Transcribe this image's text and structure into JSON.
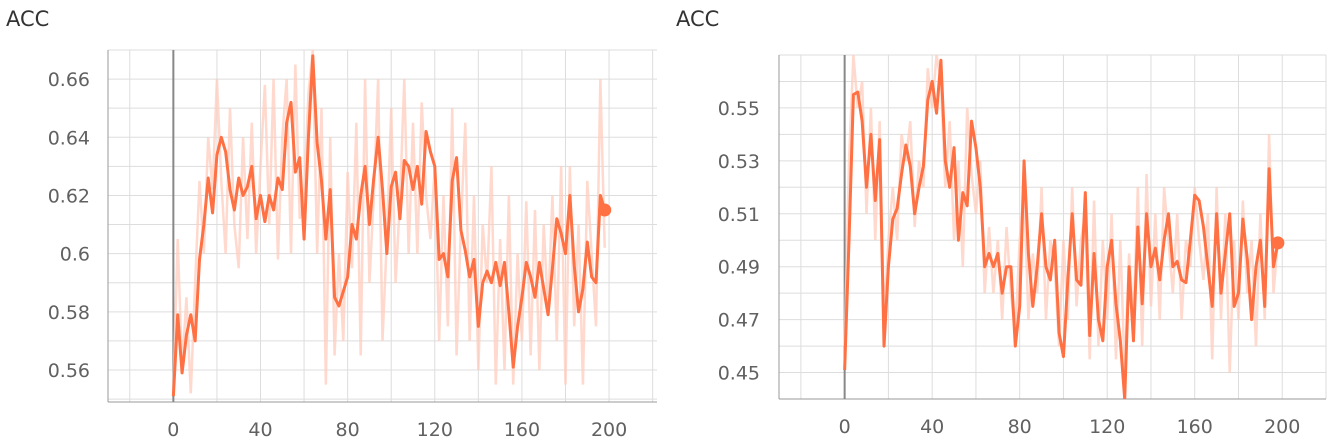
{
  "chart_data": [
    {
      "type": "line",
      "title": "ACC",
      "xlabel": "",
      "ylabel": "",
      "xlim": [
        -30,
        222
      ],
      "ylim": [
        0.549,
        0.67
      ],
      "xticks": [
        "0",
        "40",
        "80",
        "120",
        "160",
        "200"
      ],
      "xtick_values": [
        0,
        40,
        80,
        120,
        160,
        200
      ],
      "yticks": [
        "0.56",
        "0.58",
        "0.6",
        "0.62",
        "0.64",
        "0.66"
      ],
      "ytick_values": [
        0.56,
        0.58,
        0.6,
        0.62,
        0.64,
        0.66
      ],
      "grid": true,
      "colors": {
        "smoothed": "#ff7043",
        "raw": "#ffccbc",
        "grid": "#dddddd",
        "axis": "#999999"
      },
      "series": [
        {
          "x": [
            0,
            2,
            4,
            6,
            8,
            10,
            12,
            14,
            16,
            18,
            20,
            22,
            24,
            26,
            28,
            30,
            32,
            34,
            36,
            38,
            40,
            42,
            44,
            46,
            48,
            50,
            52,
            54,
            56,
            58,
            60,
            62,
            64,
            66,
            68,
            70,
            72,
            74,
            76,
            78,
            80,
            82,
            84,
            86,
            88,
            90,
            92,
            94,
            96,
            98,
            100,
            102,
            104,
            106,
            108,
            110,
            112,
            114,
            116,
            118,
            120,
            122,
            124,
            126,
            128,
            130,
            132,
            134,
            136,
            138,
            140,
            142,
            144,
            146,
            148,
            150,
            152,
            154,
            156,
            158,
            160,
            162,
            164,
            166,
            168,
            170,
            172,
            174,
            176,
            178,
            180,
            182,
            184,
            186,
            188,
            190,
            192,
            194,
            196,
            198
          ],
          "y": [
            0.551,
            0.579,
            0.559,
            0.572,
            0.579,
            0.57,
            0.598,
            0.61,
            0.626,
            0.614,
            0.634,
            0.64,
            0.635,
            0.622,
            0.615,
            0.626,
            0.62,
            0.623,
            0.63,
            0.612,
            0.62,
            0.611,
            0.62,
            0.615,
            0.626,
            0.622,
            0.645,
            0.652,
            0.628,
            0.633,
            0.605,
            0.64,
            0.668,
            0.638,
            0.625,
            0.605,
            0.622,
            0.585,
            0.582,
            0.587,
            0.592,
            0.61,
            0.605,
            0.62,
            0.63,
            0.61,
            0.626,
            0.64,
            0.622,
            0.6,
            0.623,
            0.628,
            0.612,
            0.632,
            0.63,
            0.622,
            0.63,
            0.617,
            0.642,
            0.635,
            0.63,
            0.598,
            0.6,
            0.592,
            0.625,
            0.633,
            0.608,
            0.601,
            0.592,
            0.598,
            0.575,
            0.59,
            0.594,
            0.59,
            0.597,
            0.589,
            0.597,
            0.58,
            0.561,
            0.575,
            0.585,
            0.597,
            0.592,
            0.585,
            0.597,
            0.588,
            0.579,
            0.595,
            0.612,
            0.607,
            0.6,
            0.62,
            0.596,
            0.58,
            0.588,
            0.604,
            0.592,
            0.59,
            0.62,
            0.615
          ]
        }
      ],
      "raw_series": {
        "x": [
          0,
          2,
          4,
          6,
          8,
          10,
          12,
          14,
          16,
          18,
          20,
          22,
          24,
          26,
          28,
          30,
          32,
          34,
          36,
          38,
          40,
          42,
          44,
          46,
          48,
          50,
          52,
          54,
          56,
          58,
          60,
          62,
          64,
          66,
          68,
          70,
          72,
          74,
          76,
          78,
          80,
          82,
          84,
          86,
          88,
          90,
          92,
          94,
          96,
          98,
          100,
          102,
          104,
          106,
          108,
          110,
          112,
          114,
          116,
          118,
          120,
          122,
          124,
          126,
          128,
          130,
          132,
          134,
          136,
          138,
          140,
          142,
          144,
          146,
          148,
          150,
          152,
          154,
          156,
          158,
          160,
          162,
          164,
          166,
          168,
          170,
          172,
          174,
          176,
          178,
          180,
          182,
          184,
          186,
          188,
          190,
          192,
          194,
          196,
          198
        ],
        "y": [
          0.553,
          0.605,
          0.56,
          0.585,
          0.552,
          0.59,
          0.625,
          0.6,
          0.64,
          0.622,
          0.66,
          0.625,
          0.6,
          0.65,
          0.61,
          0.595,
          0.64,
          0.605,
          0.645,
          0.6,
          0.63,
          0.658,
          0.61,
          0.66,
          0.598,
          0.64,
          0.66,
          0.6,
          0.665,
          0.612,
          0.62,
          0.655,
          0.67,
          0.6,
          0.65,
          0.555,
          0.64,
          0.565,
          0.6,
          0.57,
          0.628,
          0.595,
          0.645,
          0.565,
          0.66,
          0.59,
          0.62,
          0.66,
          0.57,
          0.605,
          0.65,
          0.59,
          0.618,
          0.66,
          0.6,
          0.645,
          0.6,
          0.652,
          0.62,
          0.605,
          0.63,
          0.57,
          0.62,
          0.575,
          0.65,
          0.565,
          0.61,
          0.645,
          0.57,
          0.62,
          0.56,
          0.61,
          0.59,
          0.63,
          0.555,
          0.605,
          0.56,
          0.62,
          0.555,
          0.6,
          0.57,
          0.618,
          0.565,
          0.615,
          0.56,
          0.61,
          0.58,
          0.62,
          0.57,
          0.63,
          0.555,
          0.63,
          0.575,
          0.61,
          0.555,
          0.625,
          0.6,
          0.575,
          0.66,
          0.602
        ]
      }
    },
    {
      "type": "line",
      "title": "ACC",
      "xlabel": "",
      "ylabel": "",
      "xlim": [
        -30,
        220
      ],
      "ylim": [
        0.44,
        0.57
      ],
      "xticks": [
        "0",
        "40",
        "80",
        "120",
        "160",
        "200"
      ],
      "xtick_values": [
        0,
        40,
        80,
        120,
        160,
        200
      ],
      "yticks": [
        "0.45",
        "0.47",
        "0.49",
        "0.51",
        "0.53",
        "0.55"
      ],
      "ytick_values": [
        0.45,
        0.47,
        0.49,
        0.51,
        0.53,
        0.55
      ],
      "grid": true,
      "colors": {
        "smoothed": "#ff7043",
        "raw": "#ffccbc",
        "grid": "#dddddd",
        "axis": "#999999"
      },
      "series": [
        {
          "x": [
            0,
            2,
            4,
            6,
            8,
            10,
            12,
            14,
            16,
            18,
            20,
            22,
            24,
            26,
            28,
            30,
            32,
            34,
            36,
            38,
            40,
            42,
            44,
            46,
            48,
            50,
            52,
            54,
            56,
            58,
            60,
            62,
            64,
            66,
            68,
            70,
            72,
            74,
            76,
            78,
            80,
            82,
            84,
            86,
            88,
            90,
            92,
            94,
            96,
            98,
            100,
            102,
            104,
            106,
            108,
            110,
            112,
            114,
            116,
            118,
            120,
            122,
            124,
            126,
            128,
            130,
            132,
            134,
            136,
            138,
            140,
            142,
            144,
            146,
            148,
            150,
            152,
            154,
            156,
            158,
            160,
            162,
            164,
            166,
            168,
            170,
            172,
            174,
            176,
            178,
            180,
            182,
            184,
            186,
            188,
            190,
            192,
            194,
            196,
            198
          ],
          "y": [
            0.451,
            0.5,
            0.555,
            0.556,
            0.545,
            0.52,
            0.54,
            0.515,
            0.538,
            0.46,
            0.49,
            0.508,
            0.512,
            0.525,
            0.536,
            0.528,
            0.51,
            0.52,
            0.528,
            0.553,
            0.56,
            0.548,
            0.568,
            0.53,
            0.52,
            0.535,
            0.5,
            0.518,
            0.513,
            0.545,
            0.535,
            0.52,
            0.49,
            0.495,
            0.49,
            0.495,
            0.48,
            0.49,
            0.49,
            0.46,
            0.475,
            0.53,
            0.495,
            0.475,
            0.49,
            0.51,
            0.49,
            0.485,
            0.5,
            0.465,
            0.456,
            0.485,
            0.51,
            0.485,
            0.483,
            0.518,
            0.464,
            0.495,
            0.47,
            0.462,
            0.49,
            0.5,
            0.476,
            0.462,
            0.44,
            0.49,
            0.462,
            0.505,
            0.476,
            0.51,
            0.49,
            0.497,
            0.485,
            0.5,
            0.51,
            0.49,
            0.492,
            0.485,
            0.484,
            0.5,
            0.517,
            0.515,
            0.505,
            0.49,
            0.475,
            0.51,
            0.48,
            0.495,
            0.51,
            0.475,
            0.48,
            0.508,
            0.493,
            0.47,
            0.49,
            0.5,
            0.475,
            0.527,
            0.49,
            0.499
          ]
        }
      ],
      "raw_series": {
        "x": [
          0,
          2,
          4,
          6,
          8,
          10,
          12,
          14,
          16,
          18,
          20,
          22,
          24,
          26,
          28,
          30,
          32,
          34,
          36,
          38,
          40,
          42,
          44,
          46,
          48,
          50,
          52,
          54,
          56,
          58,
          60,
          62,
          64,
          66,
          68,
          70,
          72,
          74,
          76,
          78,
          80,
          82,
          84,
          86,
          88,
          90,
          92,
          94,
          96,
          98,
          100,
          102,
          104,
          106,
          108,
          110,
          112,
          114,
          116,
          118,
          120,
          122,
          124,
          126,
          128,
          130,
          132,
          134,
          136,
          138,
          140,
          142,
          144,
          146,
          148,
          150,
          152,
          154,
          156,
          158,
          160,
          162,
          164,
          166,
          168,
          170,
          172,
          174,
          176,
          178,
          180,
          182,
          184,
          186,
          188,
          190,
          192,
          194,
          196,
          198
        ],
        "y": [
          0.46,
          0.53,
          0.57,
          0.55,
          0.56,
          0.51,
          0.55,
          0.5,
          0.545,
          0.47,
          0.5,
          0.52,
          0.5,
          0.54,
          0.53,
          0.545,
          0.505,
          0.53,
          0.52,
          0.565,
          0.55,
          0.57,
          0.56,
          0.52,
          0.545,
          0.5,
          0.53,
          0.49,
          0.55,
          0.525,
          0.51,
          0.53,
          0.48,
          0.505,
          0.48,
          0.5,
          0.47,
          0.505,
          0.48,
          0.465,
          0.5,
          0.52,
          0.47,
          0.495,
          0.48,
          0.52,
          0.47,
          0.5,
          0.49,
          0.46,
          0.5,
          0.47,
          0.52,
          0.475,
          0.5,
          0.51,
          0.455,
          0.515,
          0.46,
          0.5,
          0.47,
          0.51,
          0.455,
          0.5,
          0.45,
          0.495,
          0.47,
          0.52,
          0.46,
          0.525,
          0.475,
          0.51,
          0.47,
          0.52,
          0.5,
          0.48,
          0.51,
          0.47,
          0.5,
          0.49,
          0.52,
          0.5,
          0.485,
          0.51,
          0.455,
          0.52,
          0.47,
          0.51,
          0.45,
          0.5,
          0.47,
          0.515,
          0.48,
          0.5,
          0.46,
          0.51,
          0.47,
          0.54,
          0.48,
          0.5
        ]
      }
    }
  ]
}
